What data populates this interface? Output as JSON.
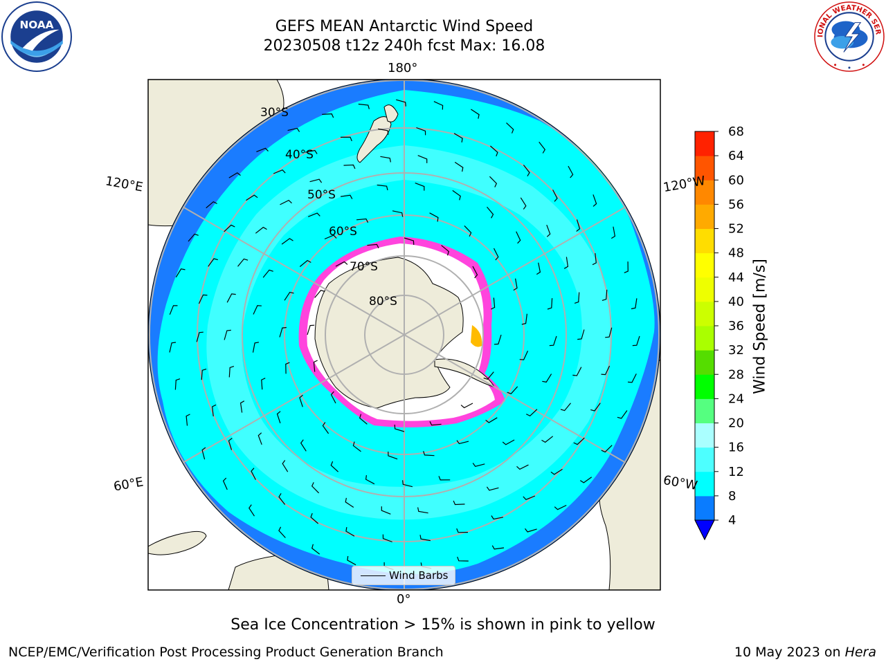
{
  "header": {
    "title_line1": "GEFS MEAN Antarctic Wind Speed",
    "title_line2": "20230508 t12z 240h fcst   Max: 16.08"
  },
  "logos": {
    "noaa": "NOAA",
    "nws": "NATIONAL WEATHER SERVICE"
  },
  "map": {
    "projection": "south-polar-stereographic",
    "longitude_labels": {
      "top": "180°",
      "bottom": "0°",
      "upper_left": "120°E",
      "upper_right": "120°W",
      "lower_left": "60°E",
      "lower_right": "60°W"
    },
    "latitude_labels": [
      "30°S",
      "40°S",
      "50°S",
      "60°S",
      "70°S",
      "80°S"
    ],
    "legend_label": "Wind Barbs",
    "colors": {
      "ocean_outer": "#1a7cff",
      "ocean_mid": "#00ffff",
      "ocean_inner": "#55ffff",
      "land": "#eeecda",
      "ice_edge": "#ff44dd",
      "graticule": "#b0b0b0"
    }
  },
  "colorbar": {
    "label": "Wind Speed [m/s]",
    "ticks": [
      "4",
      "8",
      "12",
      "16",
      "20",
      "24",
      "28",
      "32",
      "36",
      "40",
      "44",
      "48",
      "52",
      "56",
      "60",
      "64",
      "68"
    ],
    "colors": [
      "#0a7cff",
      "#00ffff",
      "#4dffff",
      "#aaffff",
      "#55ff80",
      "#00ff00",
      "#55dd00",
      "#aaff00",
      "#ccff00",
      "#eeff00",
      "#ffff00",
      "#ffdd00",
      "#ffaa00",
      "#ff8800",
      "#ff5500",
      "#ff2200",
      "#ff0000"
    ],
    "extend_color": "#0000ff"
  },
  "footer": {
    "note": "Sea Ice Concentration > 15% is shown in pink to yellow",
    "left": "NCEP/EMC/Verification Post Processing Product Generation Branch",
    "right_prefix": "10 May 2023 on ",
    "right_machine": "Hera"
  }
}
